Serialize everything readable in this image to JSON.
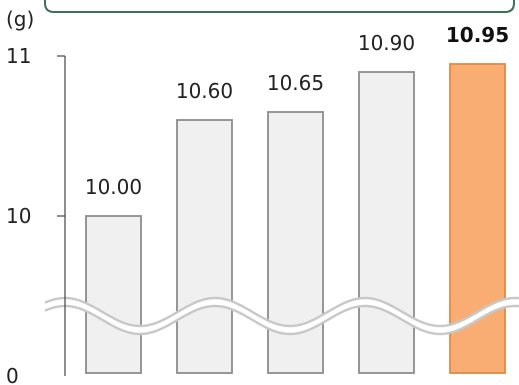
{
  "chart_data": {
    "type": "bar",
    "unit_label": "(g)",
    "y_ticks": [
      {
        "label": "11",
        "value": 11
      },
      {
        "label": "10",
        "value": 10
      },
      {
        "label": "0",
        "value": 0
      }
    ],
    "axis_break": true,
    "ylim": [
      0,
      11
    ],
    "grid": false,
    "series": [
      {
        "values": [
          10.0,
          10.6,
          10.65,
          10.9,
          10.95
        ],
        "data_labels": [
          "10.00",
          "10.60",
          "10.65",
          "10.90",
          "10.95"
        ],
        "highlight_index": 4
      }
    ],
    "colors": {
      "bar_fill": "#f0f0f0",
      "bar_stroke": "#8c8c8c",
      "highlight_fill": "#f9ad73",
      "highlight_stroke": "#e08a45",
      "axis": "#444444",
      "break_line": "#c8c8c8",
      "frame": "#3d7058"
    }
  }
}
